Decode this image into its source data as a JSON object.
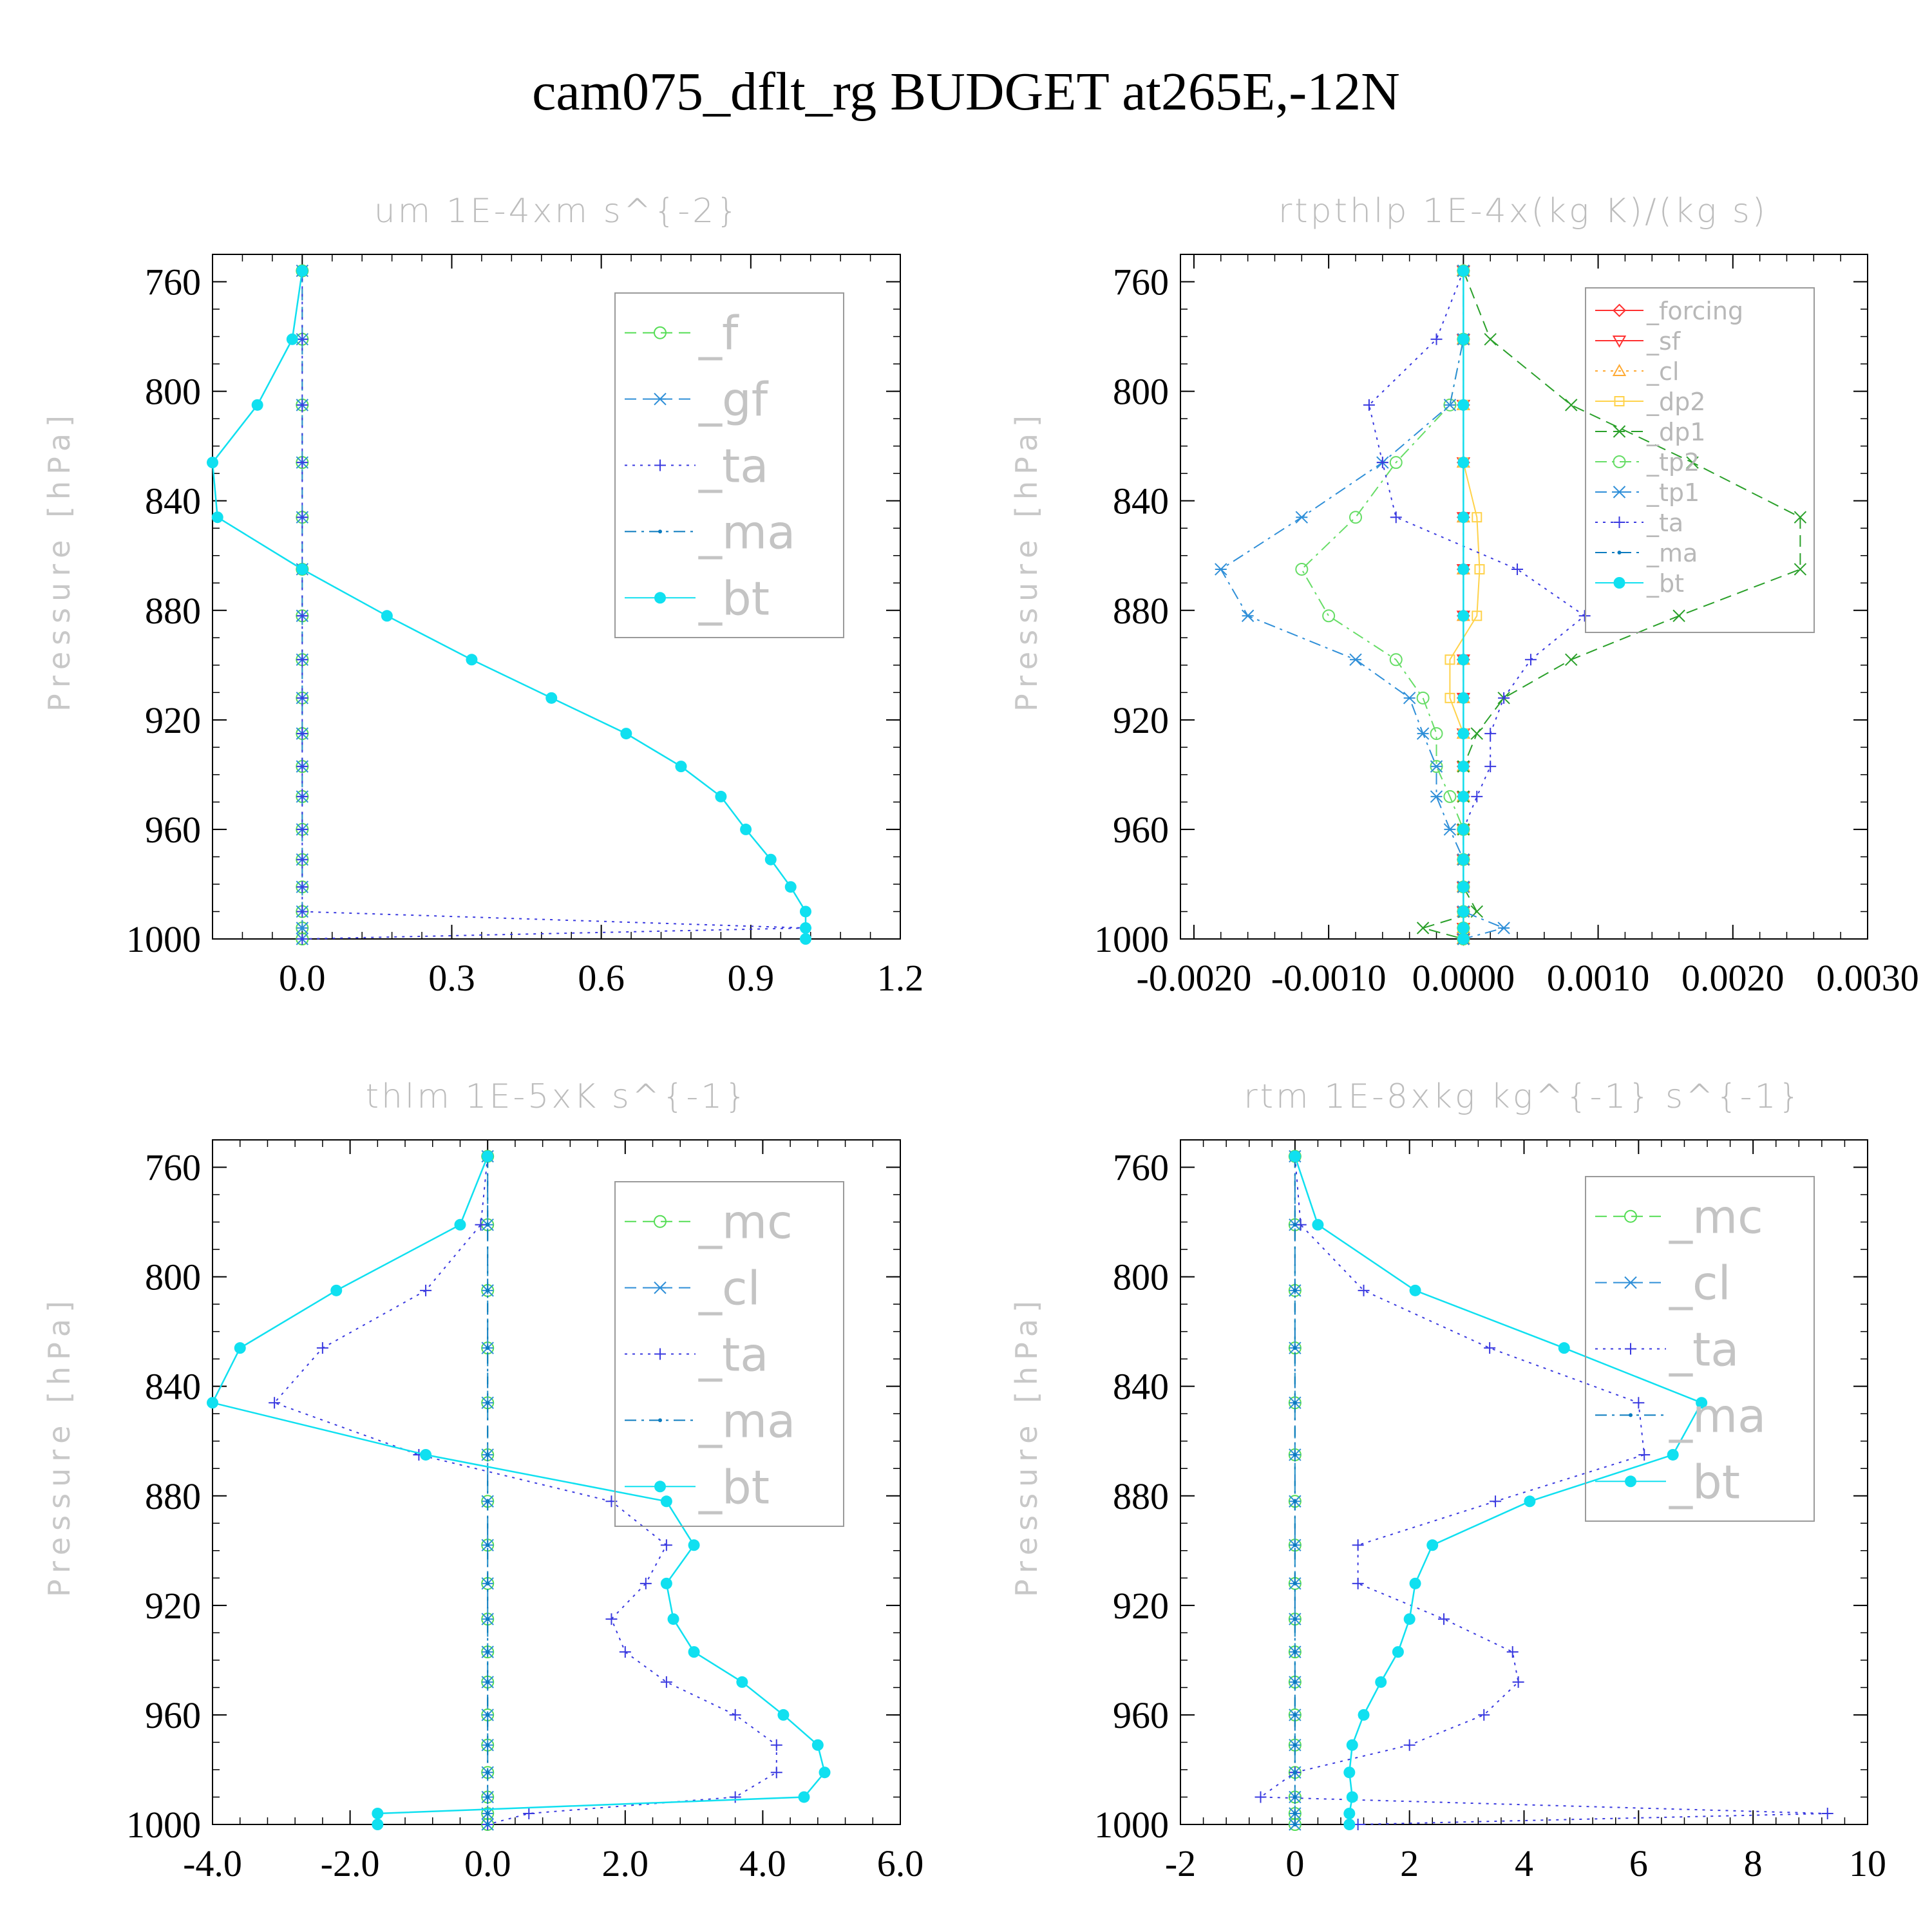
{
  "title": "cam075_dflt_rg  BUDGET at265E,-12N",
  "colors": {
    "f": "#55dd55",
    "gf": "#2f8fd8",
    "ta": "#3a3ae0",
    "ma": "#0b7bbf",
    "bt": "#10e0f0",
    "forcing": "#ff3030",
    "sf": "#ff3030",
    "cl_orange": "#ffaa33",
    "dp2": "#ffd24a",
    "dp1": "#2aa02a",
    "tp2": "#66dd66",
    "tp1": "#2f8fd8",
    "mc": "#55dd55",
    "cl": "#2f8fd8"
  },
  "chart_data": [
    {
      "type": "line",
      "title": "um   1E-4xm s^{-2}",
      "ylabel": "Pressure [hPa]",
      "xlim": [
        -0.18,
        1.2
      ],
      "ylim": [
        750,
        1000
      ],
      "xticks": [
        "0.0",
        "0.3",
        "0.6",
        "0.9",
        "1.2"
      ],
      "yticks": [
        "760",
        "800",
        "840",
        "880",
        "920",
        "960",
        "1000"
      ],
      "legend_position": "top-right",
      "pressure": [
        756,
        781,
        805,
        826,
        846,
        865,
        882,
        898,
        912,
        925,
        937,
        948,
        960,
        971,
        981,
        990,
        996,
        1000
      ],
      "series": [
        {
          "name": "_f",
          "key": "f",
          "style": "dash",
          "marker": "circle",
          "values": [
            0,
            0,
            0,
            0,
            0,
            0,
            0,
            0,
            0,
            0,
            0,
            0,
            0,
            0,
            0,
            0,
            0,
            0
          ]
        },
        {
          "name": "_gf",
          "key": "gf",
          "style": "dash",
          "marker": "star",
          "values": [
            0,
            0,
            0,
            0,
            0,
            0,
            0,
            0,
            0,
            0,
            0,
            0,
            0,
            0,
            0,
            0,
            0,
            0
          ]
        },
        {
          "name": "_ta",
          "key": "ta",
          "style": "dot",
          "marker": "plus",
          "values": [
            0,
            0,
            0,
            0,
            0,
            0,
            0,
            0,
            0,
            0,
            0,
            0,
            0,
            0,
            0,
            0,
            1.01,
            0
          ]
        },
        {
          "name": "_ma",
          "key": "ma",
          "style": "dashdot",
          "marker": "dot",
          "values": [
            0,
            -0.02,
            -0.09,
            -0.18,
            -0.17,
            0,
            0.17,
            0.34,
            0.5,
            0.65,
            0.76,
            0.84,
            0.89,
            0.94,
            0.98,
            1.01,
            1.01,
            1.01
          ]
        },
        {
          "name": "_bt",
          "key": "bt",
          "style": "solid",
          "marker": "bigdot",
          "values": [
            0,
            -0.02,
            -0.09,
            -0.18,
            -0.17,
            0,
            0.17,
            0.34,
            0.5,
            0.65,
            0.76,
            0.84,
            0.89,
            0.94,
            0.98,
            1.01,
            1.01,
            1.01
          ]
        }
      ]
    },
    {
      "type": "line",
      "title": "rtpthlp   1E-4x(kg K)/(kg s)",
      "ylabel": "Pressure [hPa]",
      "xlim": [
        -0.0021,
        0.003
      ],
      "ylim": [
        750,
        1000
      ],
      "xticks": [
        "-0.0020",
        "-0.0010",
        "0.0000",
        "0.0010",
        "0.0020",
        "0.0030"
      ],
      "yticks": [
        "760",
        "800",
        "840",
        "880",
        "920",
        "960",
        "1000"
      ],
      "legend_position": "top-right",
      "pressure": [
        756,
        781,
        805,
        826,
        846,
        865,
        882,
        898,
        912,
        925,
        937,
        948,
        960,
        971,
        981,
        990,
        996,
        1000
      ],
      "series": [
        {
          "name": "_forcing",
          "key": "forcing",
          "style": "solid",
          "marker": "diamond",
          "values": [
            0,
            0,
            0,
            0,
            0,
            0,
            0,
            0,
            0,
            0,
            0,
            0,
            0,
            0,
            0,
            0,
            0,
            0
          ]
        },
        {
          "name": "_sf",
          "key": "sf",
          "style": "solid",
          "marker": "tridown",
          "values": [
            0,
            0,
            0,
            0,
            0,
            0,
            0,
            0,
            0,
            0,
            0,
            0,
            0,
            0,
            0,
            0,
            0,
            0
          ]
        },
        {
          "name": "_cl",
          "key": "cl_orange",
          "style": "dot",
          "marker": "triup",
          "values": [
            0,
            0,
            0,
            0,
            0,
            0,
            0,
            0,
            0,
            0,
            0,
            0,
            0,
            0,
            0,
            0,
            0,
            0
          ]
        },
        {
          "name": "_dp2",
          "key": "dp2",
          "style": "solid",
          "marker": "square",
          "values": [
            0,
            0,
            0,
            0,
            0.0001,
            0.00012,
            0.0001,
            -0.0001,
            -0.0001,
            0,
            0,
            0,
            0,
            0,
            0,
            0,
            0,
            0
          ]
        },
        {
          "name": "_dp1",
          "key": "dp1",
          "style": "dash",
          "marker": "cross",
          "values": [
            0,
            0.0002,
            0.0008,
            0.0017,
            0.0025,
            0.0025,
            0.0016,
            0.0008,
            0.0003,
            0.0001,
            0,
            0,
            0,
            0,
            0,
            0.0001,
            -0.0003,
            0
          ]
        },
        {
          "name": "_tp2",
          "key": "tp2",
          "style": "dashdot",
          "marker": "circle",
          "values": [
            0,
            0,
            -0.0001,
            -0.0005,
            -0.0008,
            -0.0012,
            -0.001,
            -0.0005,
            -0.0003,
            -0.0002,
            -0.0002,
            -0.0001,
            0,
            0,
            0,
            0,
            0,
            0
          ]
        },
        {
          "name": "_tp1",
          "key": "tp1",
          "style": "dashdot",
          "marker": "star",
          "values": [
            0,
            0,
            -0.0001,
            -0.0006,
            -0.0012,
            -0.0018,
            -0.0016,
            -0.0008,
            -0.0004,
            -0.0003,
            -0.0002,
            -0.0002,
            -0.0001,
            0,
            0,
            0,
            0.0003,
            0
          ]
        },
        {
          "name": "_ta",
          "key": "ta",
          "style": "dot",
          "marker": "plus",
          "values": [
            0,
            -0.0002,
            -0.0007,
            -0.0006,
            -0.0005,
            0.0004,
            0.0009,
            0.0005,
            0.0003,
            0.0002,
            0.0002,
            0.0001,
            0,
            0,
            0,
            0,
            0,
            0
          ]
        },
        {
          "name": "_ma",
          "key": "ma",
          "style": "dashdot",
          "marker": "dot",
          "values": [
            0,
            0,
            0,
            0,
            0,
            0,
            0,
            0,
            0,
            0,
            0,
            0,
            0,
            0,
            0,
            0,
            0,
            0
          ]
        },
        {
          "name": "_bt",
          "key": "bt",
          "style": "solid",
          "marker": "bigdot",
          "values": [
            0,
            0,
            0,
            0,
            0,
            0,
            0,
            0,
            0,
            0,
            0,
            0,
            0,
            0,
            0,
            0,
            0,
            0
          ]
        }
      ]
    },
    {
      "type": "line",
      "title": "thlm   1E-5xK s^{-1}",
      "ylabel": "Pressure [hPa]",
      "xlim": [
        -4,
        6
      ],
      "ylim": [
        750,
        1000
      ],
      "xticks": [
        "-4.0",
        "-2.0",
        "0.0",
        "2.0",
        "4.0",
        "6.0"
      ],
      "yticks": [
        "760",
        "800",
        "840",
        "880",
        "920",
        "960",
        "1000"
      ],
      "legend_position": "top-right",
      "pressure": [
        756,
        781,
        805,
        826,
        846,
        865,
        882,
        898,
        912,
        925,
        937,
        948,
        960,
        971,
        981,
        990,
        996,
        1000
      ],
      "series": [
        {
          "name": "_mc",
          "key": "mc",
          "style": "dash",
          "marker": "circle",
          "values": [
            0,
            0,
            0,
            0,
            0,
            0,
            0,
            0,
            0,
            0,
            0,
            0,
            0,
            0,
            0,
            0,
            0,
            0
          ]
        },
        {
          "name": "_cl",
          "key": "cl",
          "style": "dash",
          "marker": "star",
          "values": [
            0,
            0,
            0,
            0,
            0,
            0,
            0,
            0,
            0,
            0,
            0,
            0,
            0,
            0,
            0,
            0,
            0,
            0
          ]
        },
        {
          "name": "_ta",
          "key": "ta",
          "style": "dot",
          "marker": "plus",
          "values": [
            0,
            -0.1,
            -0.9,
            -2.4,
            -3.1,
            -1.0,
            1.8,
            2.6,
            2.3,
            1.8,
            2.0,
            2.6,
            3.6,
            4.2,
            4.2,
            3.6,
            0.6,
            0
          ]
        },
        {
          "name": "_ma",
          "key": "ma",
          "style": "dashdot",
          "marker": "dot",
          "values": [
            0,
            0,
            0,
            0,
            0,
            0,
            0,
            0,
            0,
            0,
            0,
            0,
            0,
            0,
            0,
            0,
            0,
            0
          ]
        },
        {
          "name": "_bt",
          "key": "bt",
          "style": "solid",
          "marker": "bigdot",
          "values": [
            0,
            -0.4,
            -2.2,
            -3.6,
            -4.0,
            -0.9,
            2.6,
            3.0,
            2.6,
            2.7,
            3.0,
            3.7,
            4.3,
            4.8,
            4.9,
            4.6,
            -1.6,
            -1.6
          ]
        }
      ]
    },
    {
      "type": "line",
      "title": "rtm   1E-8xkg kg^{-1} s^{-1}",
      "ylabel": "Pressure [hPa]",
      "xlim": [
        -2,
        10
      ],
      "ylim": [
        750,
        1000
      ],
      "xticks": [
        "-2",
        "0",
        "2",
        "4",
        "6",
        "8",
        "10"
      ],
      "yticks": [
        "760",
        "800",
        "840",
        "880",
        "920",
        "960",
        "1000"
      ],
      "legend_position": "top-right",
      "pressure": [
        756,
        781,
        805,
        826,
        846,
        865,
        882,
        898,
        912,
        925,
        937,
        948,
        960,
        971,
        981,
        990,
        996,
        1000
      ],
      "series": [
        {
          "name": "_mc",
          "key": "mc",
          "style": "dash",
          "marker": "circle",
          "values": [
            0,
            0,
            0,
            0,
            0,
            0,
            0,
            0,
            0,
            0,
            0,
            0,
            0,
            0,
            0,
            0,
            0,
            0
          ]
        },
        {
          "name": "_cl",
          "key": "cl",
          "style": "dash",
          "marker": "star",
          "values": [
            0,
            0,
            0,
            0,
            0,
            0,
            0,
            0,
            0,
            0,
            0,
            0,
            0,
            0,
            0,
            0,
            0,
            0
          ]
        },
        {
          "name": "_ta",
          "key": "ta",
          "style": "dot",
          "marker": "plus",
          "values": [
            0,
            0.1,
            1.2,
            3.4,
            6.0,
            6.1,
            3.5,
            1.1,
            1.1,
            2.6,
            3.8,
            3.9,
            3.3,
            2.0,
            0,
            -0.6,
            9.3,
            1.1
          ]
        },
        {
          "name": "_ma",
          "key": "ma",
          "style": "dashdot",
          "marker": "dot",
          "values": [
            0,
            0,
            0,
            0,
            0,
            0,
            0,
            0,
            0,
            0,
            0,
            0,
            0,
            0,
            0,
            0,
            0,
            0
          ]
        },
        {
          "name": "_bt",
          "key": "bt",
          "style": "solid",
          "marker": "bigdot",
          "values": [
            0,
            0.4,
            2.1,
            4.7,
            7.1,
            6.6,
            4.1,
            2.4,
            2.1,
            2.0,
            1.8,
            1.5,
            1.2,
            1.0,
            0.95,
            1.0,
            0.95,
            0.95
          ]
        }
      ]
    }
  ]
}
